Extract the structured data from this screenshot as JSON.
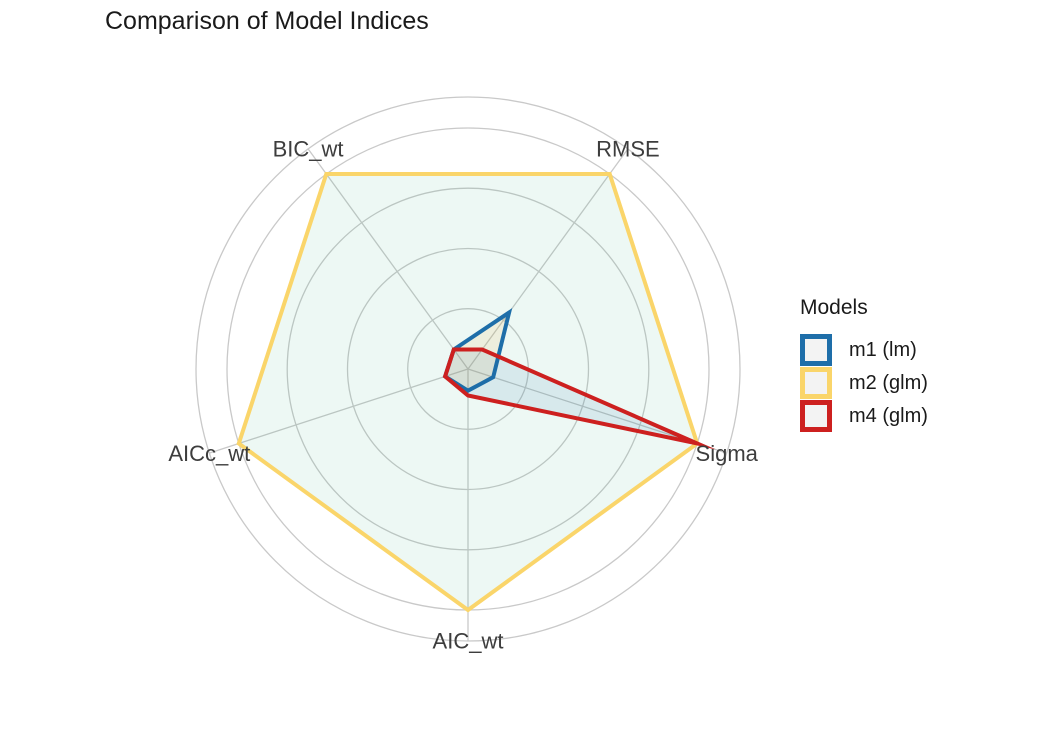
{
  "chart_data": {
    "type": "radar",
    "title": "Comparison of Model Indices",
    "axes": [
      "BIC_wt",
      "RMSE",
      "Sigma",
      "AIC_wt",
      "AICc_wt"
    ],
    "scale": {
      "min": 0,
      "max": 1,
      "gridline_values": [
        0.25,
        0.5,
        0.75,
        1.0
      ],
      "outer_ring": true,
      "grid": true
    },
    "series": [
      {
        "name": "m1 (lm)",
        "color": "#1e6ea9",
        "fill": "rgba(243,156,18,0.10)",
        "values": [
          0.1,
          0.29,
          0.11,
          0.09,
          0.1
        ]
      },
      {
        "name": "m2 (glm)",
        "color": "#fad56a",
        "fill": "rgba(58,175,133,0.09)",
        "values": [
          1.0,
          1.0,
          1.0,
          1.0,
          1.0
        ]
      },
      {
        "name": "m4 (glm)",
        "color": "#cd201f",
        "fill": "rgba(27,108,168,0.10)",
        "values": [
          0.1,
          0.1,
          1.0,
          0.11,
          0.1
        ]
      }
    ],
    "legend": {
      "title": "Models",
      "position": "right"
    }
  }
}
